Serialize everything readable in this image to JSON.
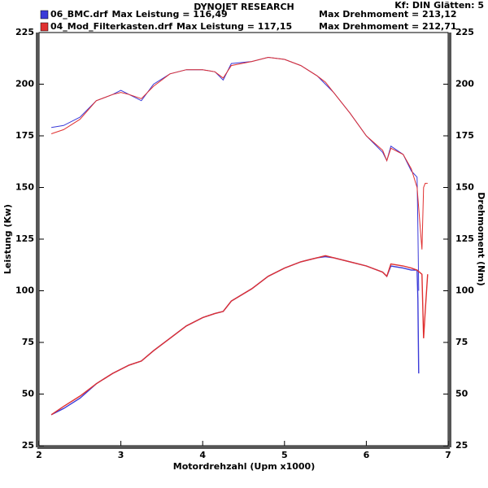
{
  "chart_data": {
    "type": "line",
    "title": "DYNOJET RESEARCH",
    "subtitle": "Kf: DIN  Glätten: 5",
    "x_label": "Motordrehzahl (Upm x1000)",
    "y_label": "Leistung (Kw)",
    "y2_label": "Drehmoment (Nm)",
    "xlim": [
      2,
      7
    ],
    "xticks": [
      2,
      3,
      4,
      5,
      6,
      7
    ],
    "ylim": [
      25,
      225
    ],
    "yticks": [
      25,
      50,
      75,
      100,
      125,
      150,
      175,
      200,
      225
    ],
    "y2lim": [
      25,
      225
    ],
    "y2ticks": [
      25,
      50,
      75,
      100,
      125,
      150,
      175,
      200,
      225
    ],
    "files": [
      {
        "name": "06_BMC.drf",
        "color": "#3a3ad8",
        "max_power": {
          "value": 116.49,
          "label": "Max Leistung = 116,49"
        },
        "max_torque": {
          "value": 213.12,
          "label": "Max Drehmoment = 213,12"
        },
        "x": [
          2.15,
          2.3,
          2.5,
          2.7,
          2.9,
          3.0,
          3.1,
          3.25,
          3.4,
          3.6,
          3.8,
          4.0,
          4.15,
          4.25,
          4.35,
          4.6,
          4.8,
          5.0,
          5.2,
          5.4,
          5.5,
          5.6,
          5.8,
          6.0,
          6.2,
          6.25,
          6.3,
          6.45,
          6.55,
          6.62,
          6.63,
          6.64
        ],
        "power": [
          40,
          43,
          48,
          55,
          60,
          62,
          64,
          66,
          71,
          77,
          83,
          87,
          89,
          90,
          95,
          101,
          107,
          111,
          114,
          116,
          116.5,
          116,
          114,
          112,
          109,
          107,
          112,
          111,
          110,
          110,
          96,
          60
        ],
        "torque": [
          179,
          180,
          184,
          192,
          195,
          197,
          195,
          192,
          200,
          205,
          207,
          207,
          206,
          202,
          210,
          211,
          213,
          212,
          209,
          204,
          200,
          196,
          186,
          175,
          167,
          163,
          170,
          166,
          158,
          155,
          130,
          100
        ]
      },
      {
        "name": "04_Mod_Filterkasten.drf",
        "color": "#e03030",
        "max_power": {
          "value": 117.15,
          "label": "Max Leistung = 117,15"
        },
        "max_torque": {
          "value": 212.71,
          "label": "Max Drehmoment = 212,71"
        },
        "x": [
          2.15,
          2.3,
          2.5,
          2.7,
          2.9,
          3.0,
          3.1,
          3.25,
          3.4,
          3.6,
          3.8,
          4.0,
          4.15,
          4.25,
          4.35,
          4.6,
          4.8,
          5.0,
          5.2,
          5.4,
          5.5,
          5.6,
          5.8,
          6.0,
          6.2,
          6.25,
          6.3,
          6.45,
          6.55,
          6.62,
          6.68,
          6.7,
          6.72,
          6.75
        ],
        "power": [
          40,
          44,
          49,
          55,
          60,
          62,
          64,
          66,
          71,
          77,
          83,
          87,
          89,
          90,
          95,
          101,
          107,
          111,
          114,
          116,
          117,
          116,
          114,
          112,
          109,
          107,
          113,
          112,
          111,
          110,
          108,
          77,
          90,
          108
        ],
        "torque": [
          176,
          178,
          183,
          192,
          195,
          196,
          195,
          193,
          199,
          205,
          207,
          207,
          206,
          203,
          209,
          211,
          213,
          212,
          209,
          204,
          201,
          196,
          186,
          175,
          168,
          163,
          169,
          166,
          159,
          150,
          120,
          150,
          152,
          152
        ]
      }
    ]
  }
}
